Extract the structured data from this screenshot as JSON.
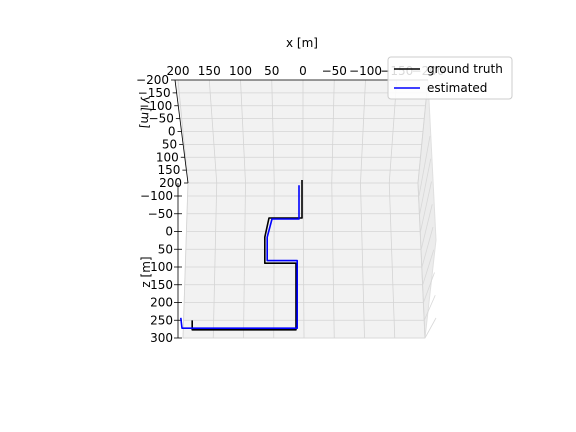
{
  "chart_data": {
    "type": "line",
    "view": "3d",
    "xlabel": "x [m]",
    "ylabel": "y [m]",
    "zlabel": "z [m]",
    "x_ticks": [
      "200",
      "150",
      "100",
      "50",
      "0",
      "−50",
      "−100",
      "−150",
      "−200"
    ],
    "y_ticks": [
      "−200",
      "−150",
      "−100",
      "−50",
      "0",
      "50",
      "100",
      "150",
      "200"
    ],
    "z_ticks": [
      "−100",
      "−50",
      "0",
      "50",
      "100",
      "150",
      "200",
      "250",
      "300"
    ],
    "grid": true,
    "legend_position": "top-right",
    "series": [
      {
        "name": "ground truth",
        "color": "#000000",
        "points": [
          [
            0,
            -60
          ],
          [
            0,
            5
          ],
          [
            0,
            13
          ],
          [
            -55,
            13
          ],
          [
            -62,
            50
          ],
          [
            -62,
            100
          ],
          [
            -10,
            100
          ],
          [
            -10,
            228
          ],
          [
            -183,
            228
          ],
          [
            -183,
            210
          ]
        ]
      },
      {
        "name": "estimated",
        "color": "#0000ff",
        "points": [
          [
            -5,
            -50
          ],
          [
            -5,
            15
          ],
          [
            -50,
            15
          ],
          [
            -58,
            50
          ],
          [
            -58,
            95
          ],
          [
            -8,
            95
          ],
          [
            -8,
            225
          ],
          [
            -200,
            225
          ],
          [
            -202,
            205
          ]
        ]
      }
    ]
  }
}
